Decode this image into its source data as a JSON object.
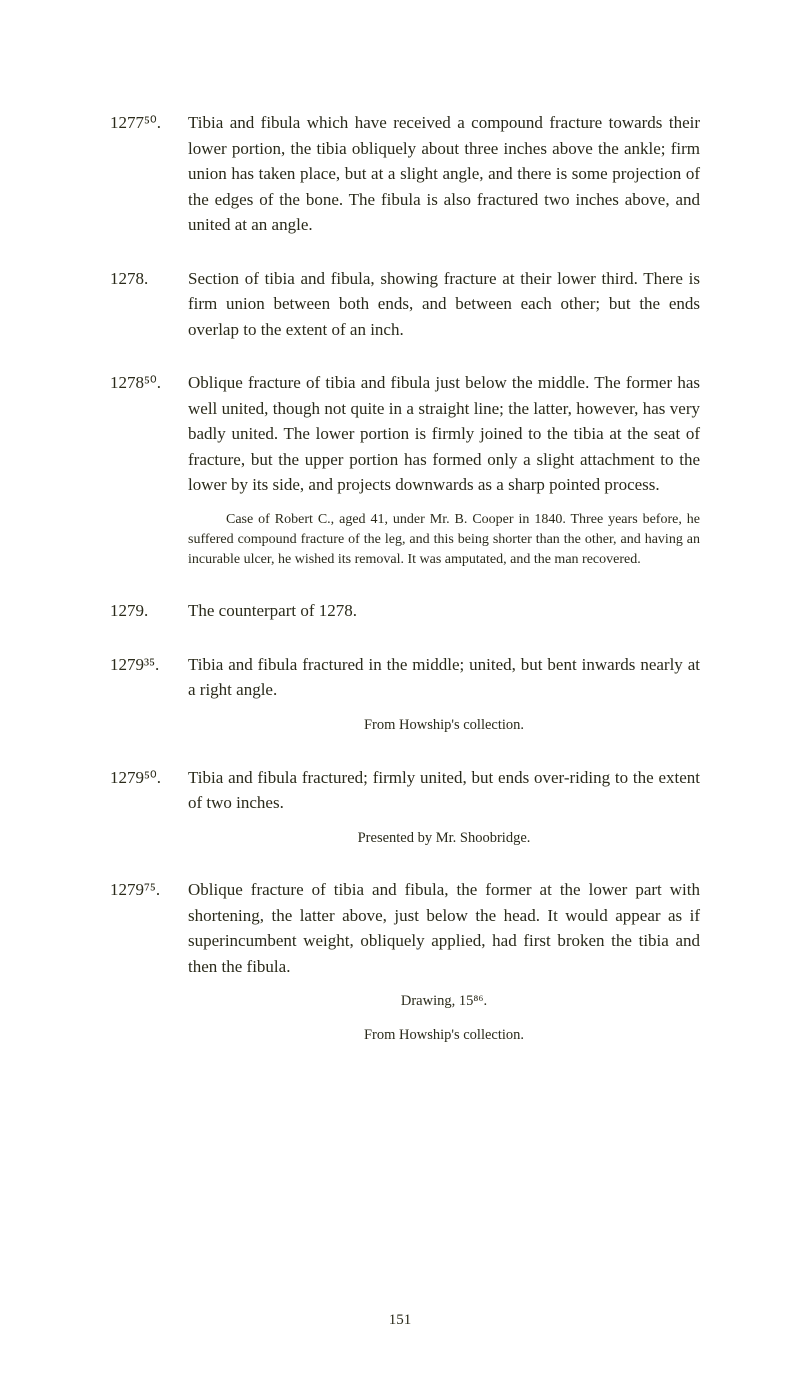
{
  "entries": [
    {
      "num": "1277⁵⁰.",
      "text": "Tibia and fibula which have received a compound fracture towards their lower portion, the tibia obliquely about three inches above the ankle; firm union has taken place, but at a slight angle, and there is some projection of the edges of the bone. The fibula is also fractured two inches above, and united at an angle."
    },
    {
      "num": "1278.",
      "text": "Section of tibia and fibula, showing fracture at their lower third. There is firm union between both ends, and between each other; but the ends overlap to the extent of an inch."
    },
    {
      "num": "1278⁵⁰.",
      "text": "Oblique fracture of tibia and fibula just below the middle. The former has well united, though not quite in a straight line; the latter, however, has very badly united. The lower portion is firmly joined to the tibia at the seat of fracture, but the upper portion has formed only a slight attachment to the lower by its side, and projects downwards as a sharp pointed process.",
      "note": "Case of Robert C., aged 41, under Mr. B. Cooper in 1840. Three years before, he suffered compound fracture of the leg, and this being shorter than the other, and having an incurable ulcer, he wished its removal. It was amputated, and the man recovered."
    },
    {
      "num": "1279.",
      "text": "The counterpart of 1278."
    },
    {
      "num": "1279³⁵.",
      "text": "Tibia and fibula fractured in the middle; united, but bent inwards nearly at a right angle.",
      "centered": "From Howship's collection."
    },
    {
      "num": "1279⁵⁰.",
      "text": "Tibia and fibula fractured; firmly united, but ends over-riding to the extent of two inches.",
      "centered": "Presented by Mr. Shoobridge."
    },
    {
      "num": "1279⁷⁵.",
      "text": "Oblique fracture of tibia and fibula, the former at the lower part with shortening, the latter above, just below the head. It would appear as if superincumbent weight, obliquely applied, had first broken the tibia and then the fibula.",
      "centered": "Drawing, 15⁸⁶.",
      "centered2": "From Howship's collection."
    }
  ],
  "pageNumber": "151"
}
